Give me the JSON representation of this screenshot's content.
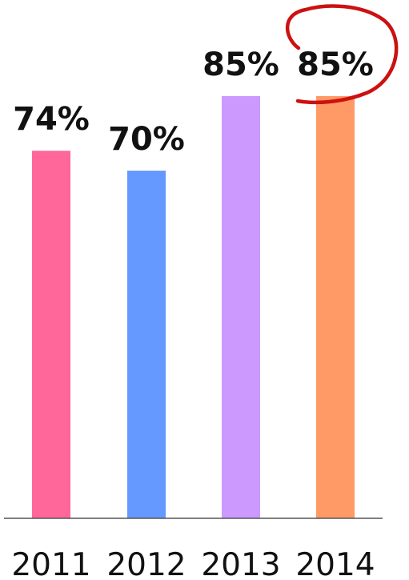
{
  "chart_data": {
    "type": "bar",
    "title": "",
    "xlabel": "",
    "ylabel": "",
    "categories": [
      "2011",
      "2012",
      "2013",
      "2014"
    ],
    "values": [
      74,
      70,
      85,
      85
    ],
    "data_labels": [
      "74%",
      "70%",
      "85%",
      "85%"
    ],
    "value_unit": "%",
    "ylim": [
      0,
      100
    ],
    "grid": false,
    "legend": "none",
    "bar_colors": [
      "#ff6699",
      "#6699ff",
      "#cc99ff",
      "#ff9966"
    ],
    "annotation": {
      "type": "hand-drawn circle",
      "target_category": "2014",
      "color": "#cc1111"
    }
  }
}
